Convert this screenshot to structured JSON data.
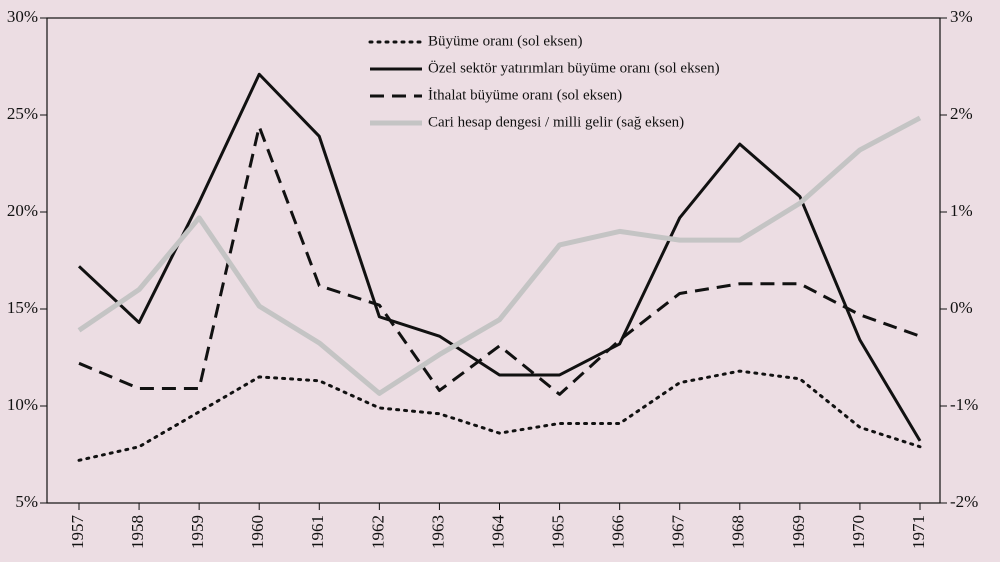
{
  "chart_data": {
    "type": "line",
    "categories": [
      "1957",
      "1958",
      "1959",
      "1960",
      "1961",
      "1962",
      "1963",
      "1964",
      "1965",
      "1966",
      "1967",
      "1968",
      "1969",
      "1970",
      "1971"
    ],
    "series": [
      {
        "name": "Büyüme oranı (sol eksen)",
        "color": "#111111",
        "line_style": "dotted",
        "values": [
          7.2,
          7.9,
          9.7,
          11.5,
          11.3,
          9.9,
          9.6,
          8.6,
          9.1,
          9.1,
          11.2,
          11.8,
          11.4,
          8.9,
          7.9
        ]
      },
      {
        "name": "Özel sektör yatırımları büyüme oranı (sol eksen)",
        "color": "#111111",
        "line_style": "solid",
        "values": [
          17.2,
          14.3,
          20.5,
          27.1,
          23.9,
          14.6,
          13.6,
          11.6,
          11.6,
          13.2,
          19.7,
          23.5,
          20.8,
          13.4,
          8.2
        ]
      },
      {
        "name": "İthalat büyüme oranı (sol eksen)",
        "color": "#111111",
        "line_style": "dashed",
        "values": [
          12.2,
          10.9,
          10.9,
          24.4,
          16.2,
          15.2,
          10.8,
          13.1,
          10.6,
          13.4,
          15.8,
          16.3,
          16.3,
          14.7,
          13.6
        ]
      },
      {
        "name": "Cari hesap dengesi / milli gelir (sağ eksen)",
        "color": "#c4c4c4",
        "line_style": "solid",
        "axis": "y2",
        "values": [
          -0.22,
          0.2,
          0.94,
          0.03,
          -0.35,
          -0.87,
          -0.47,
          -0.11,
          0.66,
          0.8,
          0.71,
          0.71,
          1.09,
          1.64,
          1.97
        ]
      }
    ],
    "ylim": [
      5,
      30
    ],
    "yticks": [
      {
        "value": 5,
        "label": "5%"
      },
      {
        "value": 10,
        "label": "10%"
      },
      {
        "value": 15,
        "label": "15%"
      },
      {
        "value": 20,
        "label": "20%"
      },
      {
        "value": 25,
        "label": "25%"
      },
      {
        "value": 30,
        "label": "30%"
      }
    ],
    "y2lim": [
      -2,
      3
    ],
    "y2ticks": [
      {
        "value": -2,
        "label": "-2%"
      },
      {
        "value": -1,
        "label": "-1%"
      },
      {
        "value": 0,
        "label": "0%"
      },
      {
        "value": 1,
        "label": "1%"
      },
      {
        "value": 2,
        "label": "2%"
      },
      {
        "value": 3,
        "label": "3%"
      }
    ],
    "legend": "top"
  }
}
